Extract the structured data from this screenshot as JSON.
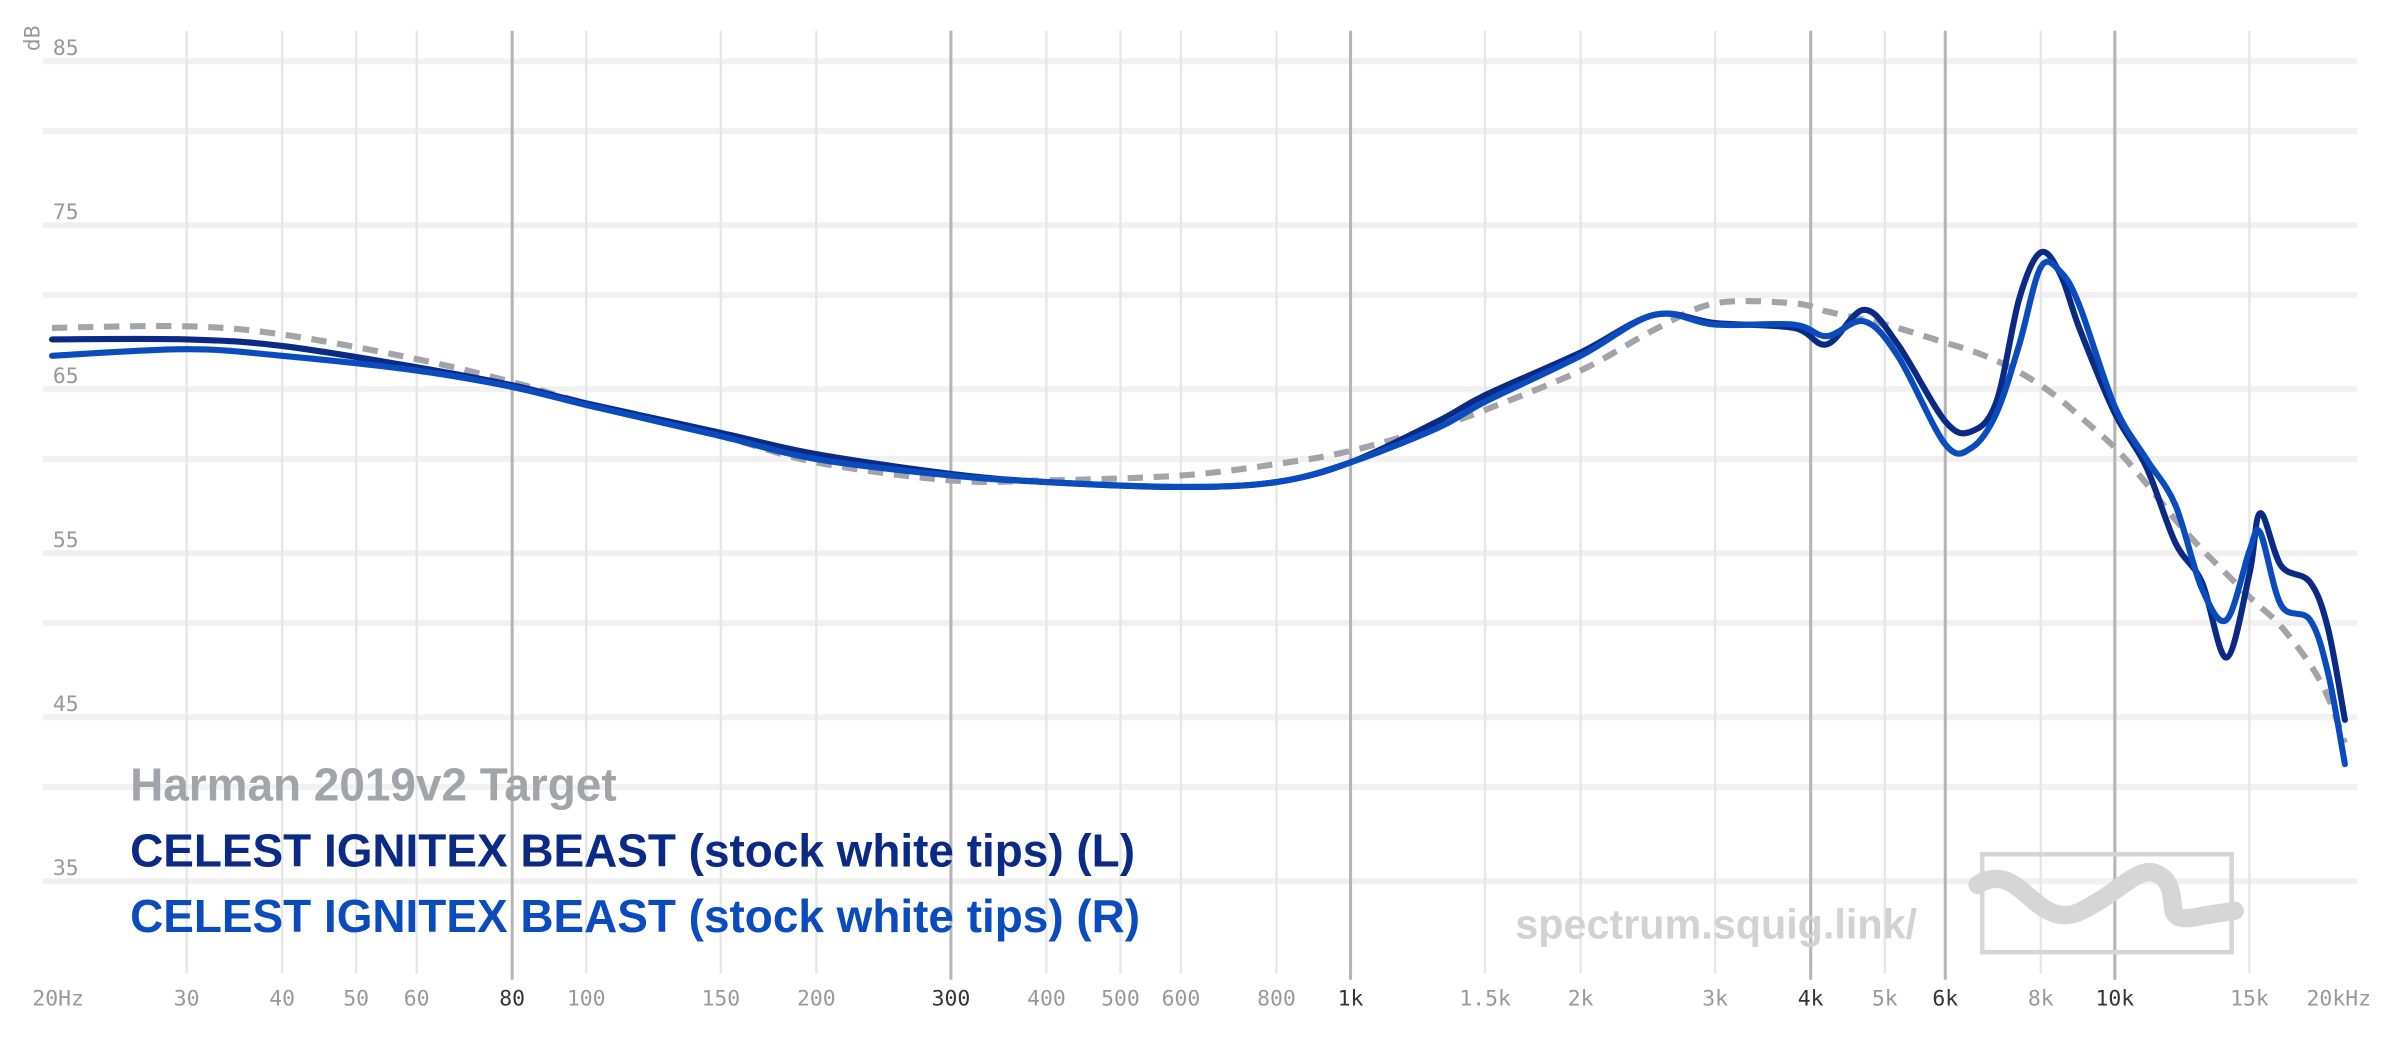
{
  "chart_data": {
    "type": "line",
    "y_axis_label": "dB",
    "xscale": "log",
    "xlim": [
      20,
      20000
    ],
    "ylim": [
      29,
      86
    ],
    "xticks": [
      {
        "value": 20,
        "label": "20Hz"
      },
      30,
      40,
      50,
      60,
      80,
      100,
      150,
      200,
      300,
      400,
      500,
      600,
      800,
      {
        "value": 1000,
        "label": "1k"
      },
      {
        "value": 1500,
        "label": "1.5k"
      },
      {
        "value": 2000,
        "label": "2k"
      },
      {
        "value": 3000,
        "label": "3k"
      },
      {
        "value": 4000,
        "label": "4k"
      },
      {
        "value": 5000,
        "label": "5k"
      },
      {
        "value": 6000,
        "label": "6k"
      },
      {
        "value": 8000,
        "label": "8k"
      },
      {
        "value": 10000,
        "label": "10k"
      },
      {
        "value": 15000,
        "label": "15k"
      },
      {
        "value": 20000,
        "label": "20kHz"
      }
    ],
    "xticks_emphasized": [
      80,
      300,
      1000,
      4000,
      6000,
      10000
    ],
    "yticks": [
      35,
      45,
      55,
      65,
      75,
      85
    ],
    "y_minor_ticks": [
      40,
      50,
      60,
      70,
      80
    ],
    "grid": true,
    "legend_position": "lower left",
    "watermark": "spectrum.squig.link/",
    "x": [
      20,
      30,
      40,
      60,
      80,
      100,
      150,
      200,
      300,
      400,
      600,
      800,
      1000,
      1300,
      1500,
      2000,
      2500,
      3000,
      3800,
      4200,
      4700,
      5200,
      6000,
      6500,
      7000,
      7500,
      8000,
      8500,
      9000,
      10000,
      11000,
      12000,
      13000,
      14000,
      15000,
      15500,
      16500,
      18000,
      19000,
      20000
    ],
    "series": [
      {
        "name": "Harman 2019v2 Target",
        "color": "#a3a3aa",
        "dashed": true,
        "values": [
          68.0,
          68.1,
          67.6,
          66.1,
          64.7,
          63.4,
          61.4,
          59.8,
          58.7,
          58.7,
          59.0,
          59.7,
          60.5,
          62.0,
          63.0,
          65.4,
          67.9,
          69.5,
          69.5,
          69.0,
          68.5,
          68.0,
          67.1,
          66.6,
          66.0,
          65.3,
          64.5,
          63.6,
          62.6,
          60.7,
          58.5,
          56.3,
          54.5,
          53.0,
          51.6,
          51.0,
          49.8,
          47.5,
          45.5,
          42.7
        ]
      },
      {
        "name": "CELEST IGNITEX BEAST (stock white tips) (L)",
        "color": "#0b2a86",
        "values": [
          67.3,
          67.3,
          66.9,
          65.6,
          64.5,
          63.4,
          61.6,
          60.3,
          59.1,
          58.6,
          58.3,
          58.6,
          59.8,
          62.3,
          63.9,
          66.5,
          68.8,
          68.3,
          68.0,
          67.0,
          69.1,
          67.0,
          62.3,
          61.7,
          63.5,
          69.8,
          72.6,
          71.2,
          67.9,
          62.8,
          59.5,
          54.9,
          52.5,
          47.9,
          53.0,
          56.7,
          53.5,
          52.5,
          49.7,
          44.1
        ]
      },
      {
        "name": "CELEST IGNITEX BEAST (stock white tips) (R)",
        "color": "#0a4cbd",
        "values": [
          66.3,
          66.7,
          66.3,
          65.4,
          64.4,
          63.3,
          61.4,
          60.0,
          59.0,
          58.6,
          58.3,
          58.6,
          59.8,
          61.9,
          63.5,
          66.3,
          68.8,
          68.2,
          68.2,
          67.5,
          68.4,
          66.3,
          60.9,
          60.7,
          62.8,
          67.0,
          71.7,
          71.4,
          69.3,
          63.2,
          60.0,
          57.2,
          52.1,
          50.2,
          54.4,
          55.5,
          51.1,
          50.2,
          47.0,
          41.4
        ]
      }
    ]
  }
}
